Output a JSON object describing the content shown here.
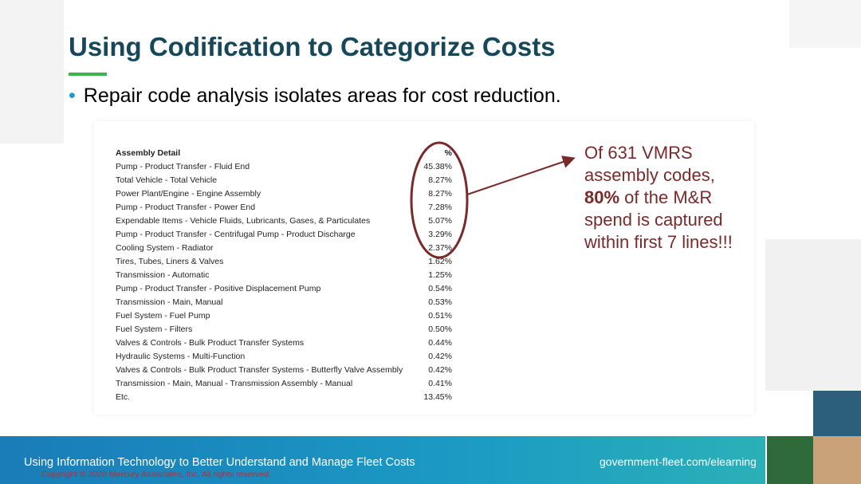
{
  "title": "Using Codification to Categorize Costs",
  "bullet": "Repair code analysis isolates areas for cost reduction.",
  "table": {
    "header": [
      "Assembly Detail",
      "%"
    ],
    "rows": [
      [
        "Pump - Product Transfer - Fluid End",
        "45.38%"
      ],
      [
        "Total Vehicle - Total Vehicle",
        "8.27%"
      ],
      [
        "Power Plant/Engine - Engine Assembly",
        "8.27%"
      ],
      [
        "Pump - Product Transfer - Power End",
        "7.28%"
      ],
      [
        "Expendable Items - Vehicle Fluids, Lubricants, Gases, & Particulates",
        "5.07%"
      ],
      [
        "Pump - Product Transfer - Centrifugal Pump - Product Discharge",
        "3.29%"
      ],
      [
        "Cooling System - Radiator",
        "2.37%"
      ],
      [
        "Tires, Tubes, Liners & Valves",
        "1.62%"
      ],
      [
        "Transmission - Automatic",
        "1.25%"
      ],
      [
        "Pump - Product Transfer - Positive Displacement Pump",
        "0.54%"
      ],
      [
        "Transmission - Main, Manual",
        "0.53%"
      ],
      [
        "Fuel System - Fuel Pump",
        "0.51%"
      ],
      [
        "Fuel System - Filters",
        "0.50%"
      ],
      [
        "Valves & Controls - Bulk Product Transfer Systems",
        "0.44%"
      ],
      [
        "Hydraulic Systems - Multi-Function",
        "0.42%"
      ],
      [
        "Valves & Controls - Bulk Product Transfer Systems - Butterfly Valve Assembly",
        "0.42%"
      ],
      [
        "Transmission - Main, Manual - Transmission Assembly - Manual",
        "0.41%"
      ],
      [
        "Etc.",
        "13.45%"
      ]
    ]
  },
  "callout": {
    "before": "Of 631 VMRS assembly codes, ",
    "bold": "80%",
    "after": " of the M&R spend is captured within first 7 lines!!!"
  },
  "footer": {
    "title": "Using Information Technology to Better Understand and Manage Fleet Costs",
    "url": "government-fleet.com/elearning",
    "copyright": "Copyright © 2020 Mercury Associates, Inc. All rights reserved."
  }
}
